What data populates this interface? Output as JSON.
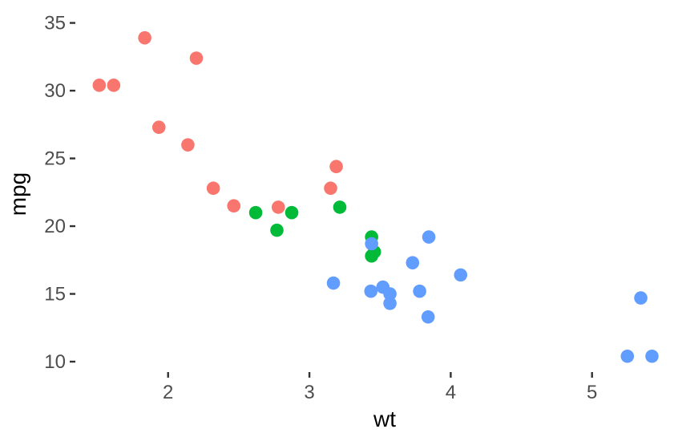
{
  "chart_data": {
    "type": "scatter",
    "title": "",
    "xlabel": "wt",
    "ylabel": "mpg",
    "xlim": [
      1.355,
      5.58
    ],
    "ylim": [
      9.35,
      36.1
    ],
    "x_ticks": [
      2,
      3,
      4,
      5
    ],
    "y_ticks": [
      10,
      15,
      20,
      25,
      30,
      35
    ],
    "grid": false,
    "legend": "none",
    "series": [
      {
        "color": "#F8766D",
        "points": [
          {
            "x": 2.32,
            "y": 22.8
          },
          {
            "x": 3.19,
            "y": 24.4
          },
          {
            "x": 3.15,
            "y": 22.8
          },
          {
            "x": 2.2,
            "y": 32.4
          },
          {
            "x": 1.615,
            "y": 30.4
          },
          {
            "x": 1.835,
            "y": 33.9
          },
          {
            "x": 2.465,
            "y": 21.5
          },
          {
            "x": 1.935,
            "y": 27.3
          },
          {
            "x": 2.14,
            "y": 26.0
          },
          {
            "x": 1.513,
            "y": 30.4
          },
          {
            "x": 2.78,
            "y": 21.4
          }
        ]
      },
      {
        "color": "#00BA38",
        "points": [
          {
            "x": 2.62,
            "y": 21.0
          },
          {
            "x": 2.875,
            "y": 21.0
          },
          {
            "x": 3.215,
            "y": 21.4
          },
          {
            "x": 3.46,
            "y": 18.1
          },
          {
            "x": 3.44,
            "y": 19.2
          },
          {
            "x": 3.44,
            "y": 17.8
          },
          {
            "x": 2.77,
            "y": 19.7
          }
        ]
      },
      {
        "color": "#619CFF",
        "points": [
          {
            "x": 3.44,
            "y": 18.7
          },
          {
            "x": 3.57,
            "y": 14.3
          },
          {
            "x": 4.07,
            "y": 16.4
          },
          {
            "x": 3.73,
            "y": 17.3
          },
          {
            "x": 3.78,
            "y": 15.2
          },
          {
            "x": 5.25,
            "y": 10.4
          },
          {
            "x": 5.424,
            "y": 10.4
          },
          {
            "x": 5.345,
            "y": 14.7
          },
          {
            "x": 3.52,
            "y": 15.5
          },
          {
            "x": 3.435,
            "y": 15.2
          },
          {
            "x": 3.84,
            "y": 13.3
          },
          {
            "x": 3.845,
            "y": 19.2
          },
          {
            "x": 3.17,
            "y": 15.8
          },
          {
            "x": 3.57,
            "y": 15.0
          }
        ]
      }
    ]
  }
}
